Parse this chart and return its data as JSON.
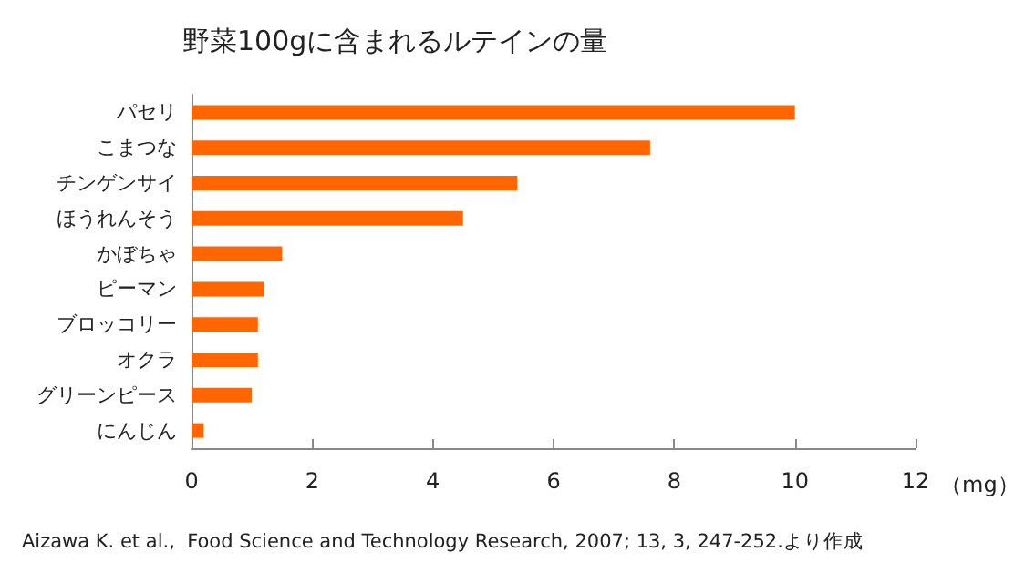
{
  "chart_data": {
    "type": "bar",
    "orientation": "horizontal",
    "title": "野菜100gに含まれるルテインの量",
    "xlabel": "（mg）",
    "categories": [
      "パセリ",
      "こまつな",
      "チンゲンサイ",
      "ほうれんそう",
      "かぼちゃ",
      "ピーマン",
      "ブロッコリー",
      "オクラ",
      "グリーンピース",
      "にんじん"
    ],
    "values": [
      10.0,
      7.6,
      5.4,
      4.5,
      1.5,
      1.2,
      1.1,
      1.1,
      1.0,
      0.2
    ],
    "color": "#ff6600",
    "xlim": [
      0,
      12
    ],
    "xticks": [
      0,
      2,
      4,
      6,
      8,
      10,
      12
    ],
    "grid": false,
    "annotations": [
      "Aizawa K. et al.,  Food Science and Technology Research, 2007; 13, 3, 247-252.より作成"
    ]
  }
}
